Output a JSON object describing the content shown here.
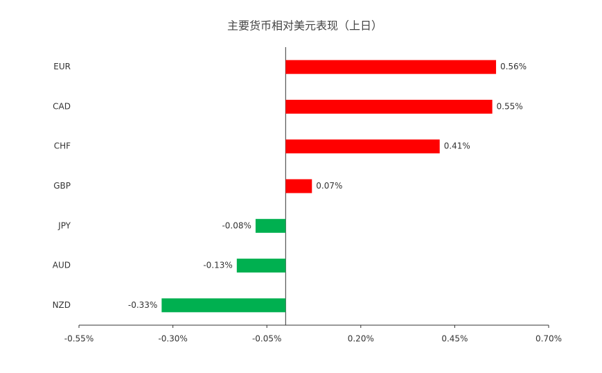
{
  "chart_data": {
    "type": "hbar",
    "title": "主要货币相对美元表现（上日）",
    "categories": [
      "EUR",
      "CAD",
      "CHF",
      "GBP",
      "JPY",
      "AUD",
      "NZD"
    ],
    "values": [
      0.56,
      0.55,
      0.41,
      0.07,
      -0.08,
      -0.13,
      -0.33
    ],
    "value_labels": [
      "0.56%",
      "0.55%",
      "0.41%",
      "0.07%",
      "-0.08%",
      "-0.13%",
      "-0.33%"
    ],
    "colors": [
      "#ff0000",
      "#ff0000",
      "#ff0000",
      "#ff0000",
      "#00b050",
      "#00b050",
      "#00b050"
    ],
    "xlim": [
      -0.55,
      0.7
    ],
    "xticks": [
      {
        "value": -0.55,
        "label": "-0.55%"
      },
      {
        "value": -0.3,
        "label": "-0.30%"
      },
      {
        "value": -0.05,
        "label": "-0.05%"
      },
      {
        "value": 0.2,
        "label": "0.20%"
      },
      {
        "value": 0.45,
        "label": "0.45%"
      },
      {
        "value": 0.7,
        "label": "0.70%"
      }
    ]
  }
}
